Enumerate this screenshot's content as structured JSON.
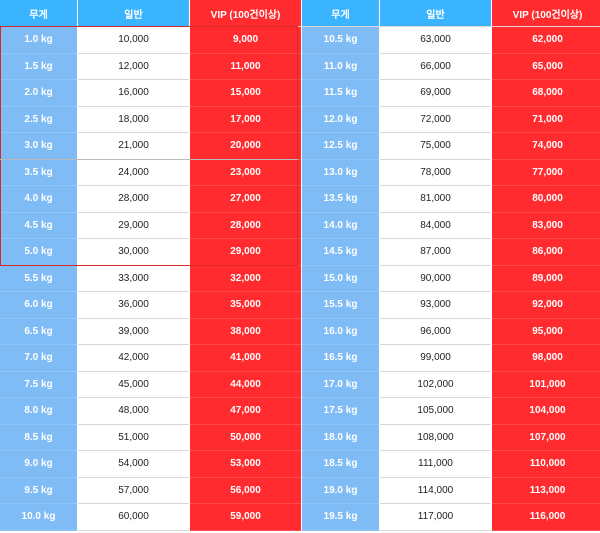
{
  "headers": [
    "무게",
    "일반",
    "VIP (100건이상)",
    "무게",
    "일반",
    "VIP (100건이상)"
  ],
  "rows": [
    [
      "1.0 kg",
      "10,000",
      "9,000",
      "10.5 kg",
      "63,000",
      "62,000"
    ],
    [
      "1.5 kg",
      "12,000",
      "11,000",
      "11.0 kg",
      "66,000",
      "65,000"
    ],
    [
      "2.0 kg",
      "16,000",
      "15,000",
      "11.5 kg",
      "69,000",
      "68,000"
    ],
    [
      "2.5 kg",
      "18,000",
      "17,000",
      "12.0 kg",
      "72,000",
      "71,000"
    ],
    [
      "3.0 kg",
      "21,000",
      "20,000",
      "12.5 kg",
      "75,000",
      "74,000"
    ],
    [
      "3.5 kg",
      "24,000",
      "23,000",
      "13.0 kg",
      "78,000",
      "77,000"
    ],
    [
      "4.0 kg",
      "28,000",
      "27,000",
      "13.5 kg",
      "81,000",
      "80,000"
    ],
    [
      "4.5 kg",
      "29,000",
      "28,000",
      "14.0 kg",
      "84,000",
      "83,000"
    ],
    [
      "5.0 kg",
      "30,000",
      "29,000",
      "14.5 kg",
      "87,000",
      "86,000"
    ],
    [
      "5.5 kg",
      "33,000",
      "32,000",
      "15.0 kg",
      "90,000",
      "89,000"
    ],
    [
      "6.0 kg",
      "36,000",
      "35,000",
      "15.5 kg",
      "93,000",
      "92,000"
    ],
    [
      "6.5 kg",
      "39,000",
      "38,000",
      "16.0 kg",
      "96,000",
      "95,000"
    ],
    [
      "7.0 kg",
      "42,000",
      "41,000",
      "16.5 kg",
      "99,000",
      "98,000"
    ],
    [
      "7.5 kg",
      "45,000",
      "44,000",
      "17.0 kg",
      "102,000",
      "101,000"
    ],
    [
      "8.0 kg",
      "48,000",
      "47,000",
      "17.5 kg",
      "105,000",
      "104,000"
    ],
    [
      "8.5 kg",
      "51,000",
      "50,000",
      "18.0 kg",
      "108,000",
      "107,000"
    ],
    [
      "9.0 kg",
      "54,000",
      "53,000",
      "18.5 kg",
      "111,000",
      "110,000"
    ],
    [
      "9.5 kg",
      "57,000",
      "56,000",
      "19.0 kg",
      "114,000",
      "113,000"
    ],
    [
      "10.0 kg",
      "60,000",
      "59,000",
      "19.5 kg",
      "117,000",
      "116,000"
    ]
  ],
  "colors": {
    "header_blue": "#3ab4ff",
    "weight_blue": "#7fbcf5",
    "vip_red": "#ff2b2f",
    "highlight_border": "#d42a2e"
  }
}
